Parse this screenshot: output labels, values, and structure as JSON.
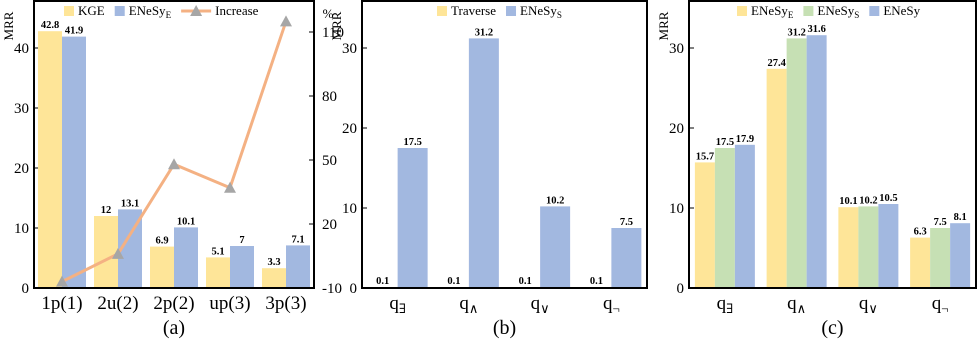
{
  "colors": {
    "yellow": "#FEE598",
    "blue": "#A2B8E0",
    "green": "#C6E0B4",
    "increase_line": "#F4B183",
    "increase_marker": "#A6A6A6"
  },
  "chart_data": [
    {
      "type": "bar",
      "caption": "(a)",
      "ylabel": "MRR",
      "y2label": "%",
      "categories": [
        "1p(1)",
        "2u(2)",
        "2p(2)",
        "up(3)",
        "3p(3)"
      ],
      "series": [
        {
          "name": "KGE",
          "values": [
            42.8,
            12,
            6.9,
            5.1,
            3.3
          ],
          "labels": [
            "42.8",
            "12",
            "6.9",
            "5.1",
            "3.3"
          ]
        },
        {
          "name": "ENeSy",
          "subscript": "E",
          "values": [
            41.9,
            13.1,
            10.1,
            7,
            7.1
          ],
          "labels": [
            "41.9",
            "13.1",
            "10.1",
            "7",
            "7.1"
          ]
        }
      ],
      "line": {
        "name": "Increase",
        "axis": "right",
        "values": [
          -7,
          6,
          48,
          37,
          115
        ]
      },
      "ylim": [
        0,
        48
      ],
      "yticks": [
        "0",
        "10",
        "20",
        "30",
        "40"
      ],
      "y2lim": [
        -10,
        125
      ],
      "y2ticks": [
        "-10",
        "20",
        "50",
        "80",
        "110"
      ],
      "legend": "top"
    },
    {
      "type": "bar",
      "caption": "(b)",
      "ylabel": "MRR",
      "categories": [
        {
          "base": "q",
          "sub": "∃"
        },
        {
          "base": "q",
          "sub": "∧"
        },
        {
          "base": "q",
          "sub": "∨"
        },
        {
          "base": "q",
          "sub": "¬"
        }
      ],
      "series": [
        {
          "name": "Traverse",
          "values": [
            0.1,
            0.1,
            0.1,
            0.1
          ],
          "labels": [
            "0.1",
            "0.1",
            "0.1",
            "0.1"
          ]
        },
        {
          "name": "ENeSy",
          "subscript": "S",
          "values": [
            17.5,
            31.2,
            10.2,
            7.5
          ],
          "labels": [
            "17.5",
            "31.2",
            "10.2",
            "7.5"
          ]
        }
      ],
      "ylim": [
        0,
        36
      ],
      "yticks": [
        "0",
        "10",
        "20",
        "30"
      ],
      "legend": "top"
    },
    {
      "type": "bar",
      "caption": "(c)",
      "ylabel": "MRR",
      "categories": [
        {
          "base": "q",
          "sub": "∃"
        },
        {
          "base": "q",
          "sub": "∧"
        },
        {
          "base": "q",
          "sub": "∨"
        },
        {
          "base": "q",
          "sub": "¬"
        }
      ],
      "series": [
        {
          "name": "ENeSy",
          "subscript": "E",
          "values": [
            15.7,
            27.4,
            10.1,
            6.3
          ],
          "labels": [
            "15.7",
            "27.4",
            "10.1",
            "6.3"
          ]
        },
        {
          "name": "ENeSy",
          "subscript": "S",
          "values": [
            17.5,
            31.2,
            10.2,
            7.5
          ],
          "labels": [
            "17.5",
            "31.2",
            "10.2",
            "7.5"
          ]
        },
        {
          "name": "ENeSy",
          "values": [
            17.9,
            31.6,
            10.5,
            8.1
          ],
          "labels": [
            "17.9",
            "31.6",
            "10.5",
            "8.1"
          ]
        }
      ],
      "ylim": [
        0,
        36
      ],
      "yticks": [
        "0",
        "10",
        "20",
        "30"
      ],
      "legend": "top"
    }
  ]
}
